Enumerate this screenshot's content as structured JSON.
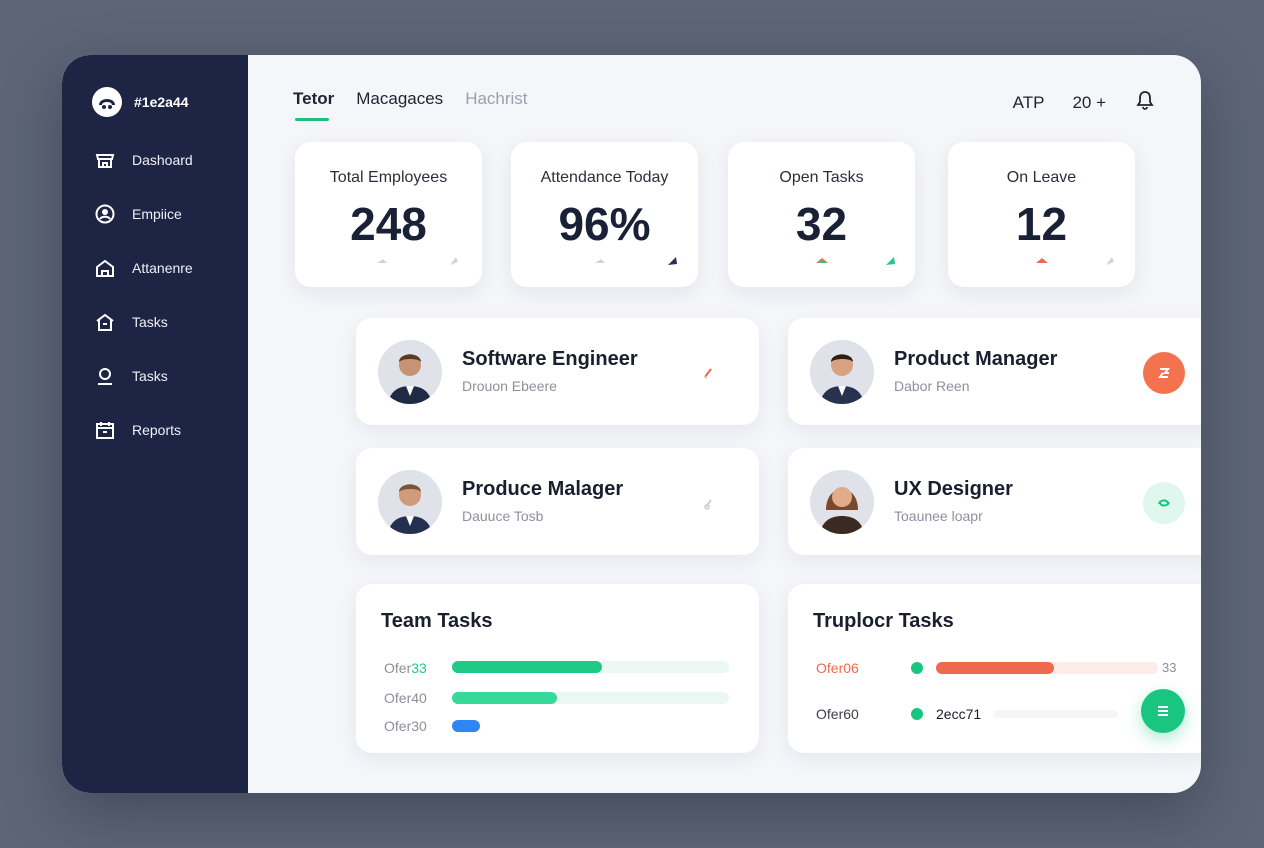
{
  "brand": {
    "name": "#1e2a44"
  },
  "sidebar": {
    "items": [
      {
        "label": "Dashoard",
        "icon": "store-icon"
      },
      {
        "label": "Empiice",
        "icon": "user-circle-icon"
      },
      {
        "label": "Attanenre",
        "icon": "house-icon"
      },
      {
        "label": "Tasks",
        "icon": "home-icon"
      },
      {
        "label": "Tasks",
        "icon": "pin-icon"
      },
      {
        "label": "Reports",
        "icon": "calendar-icon"
      }
    ]
  },
  "header": {
    "tabs": [
      {
        "label": "Tetor",
        "state": "active"
      },
      {
        "label": "Macagaces",
        "state": "normal"
      },
      {
        "label": "Hachrist",
        "state": "muted"
      }
    ],
    "right": {
      "label1": "ATP",
      "label2": "20 +",
      "icon": "bell-icon"
    }
  },
  "stats": [
    {
      "label": "Total Employees",
      "value": "248"
    },
    {
      "label": "Attendance Today",
      "value": "96%"
    },
    {
      "label": "Open Tasks",
      "value": "32"
    },
    {
      "label": "On Leave",
      "value": "12"
    }
  ],
  "roles": [
    {
      "title": "Software Engineer",
      "subtitle": "Drouon Ebeere"
    },
    {
      "title": "Product Manager",
      "subtitle": "Dabor Reen"
    },
    {
      "title": "Produce Malager",
      "subtitle": "Dauuce Tosb"
    },
    {
      "title": "UX Designer",
      "subtitle": "Toaunee loapr"
    }
  ],
  "team_tasks": {
    "title": "Team Tasks",
    "rows": [
      {
        "label": "Ofer",
        "value": "33",
        "progress": 0.54,
        "color": "#1ecb84",
        "track": "#eaf8f1"
      },
      {
        "label": "Ofer40",
        "value": "",
        "progress": 0.38,
        "color": "#37d99a",
        "track": "#eaf8f1"
      },
      {
        "label": "Ofer30",
        "value": "",
        "progress": 0.1,
        "color": "#2f86f2",
        "track": "#ffffff"
      }
    ]
  },
  "other_tasks": {
    "title": "Truplocr Tasks",
    "rows": [
      {
        "label": "Ofer06",
        "value": "33",
        "progress": 0.53,
        "color": "#ef6a4c",
        "track": "#fbecea"
      },
      {
        "label": "Ofer60",
        "value": "2ecc71",
        "progress": 0,
        "color": "#18c682",
        "track": "#f5f6f8"
      }
    ]
  },
  "colors": {
    "sidebar": "#1e2544",
    "accent_green": "#18c682",
    "accent_orange": "#f3734f"
  }
}
